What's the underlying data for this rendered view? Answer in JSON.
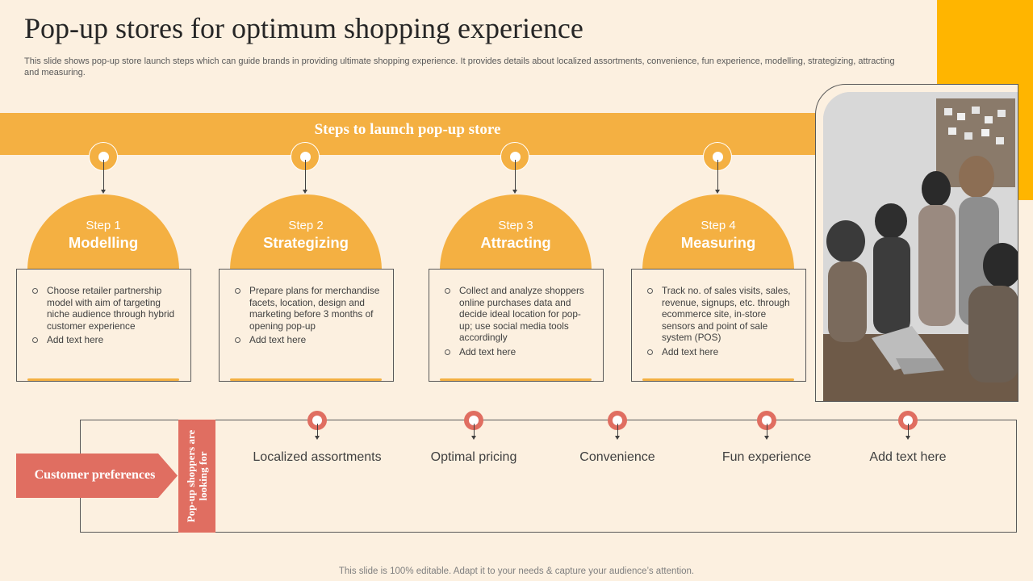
{
  "title": "Pop-up stores for optimum shopping experience",
  "subtitle": "This slide shows pop-up store launch steps which can guide brands in providing ultimate shopping experience. It provides details about localized assortments, convenience, fun experience, modelling, strategizing, attracting and measuring.",
  "banner_title": "Steps to launch pop-up store",
  "steps": [
    {
      "step": "Step 1",
      "name": "Modelling",
      "bullets": [
        "Choose retailer partnership model with aim of targeting niche audience through hybrid customer experience",
        "Add text here"
      ]
    },
    {
      "step": "Step 2",
      "name": "Strategizing",
      "bullets": [
        "Prepare plans for merchandise facets, location, design and marketing before 3 months of opening pop-up",
        "Add text here"
      ]
    },
    {
      "step": "Step 3",
      "name": "Attracting",
      "bullets": [
        "Collect and analyze shoppers online purchases data and decide ideal location for pop-up; use social media tools accordingly",
        "Add text here"
      ]
    },
    {
      "step": "Step 4",
      "name": "Measuring",
      "bullets": [
        "Track no. of sales visits, sales, revenue, signups, etc. through ecommerce site, in-store sensors and point of sale system (POS)",
        "Add text here"
      ]
    }
  ],
  "customer_preferences_label": "Customer preferences",
  "vertical_label": "Pop-up shoppers are looking for",
  "preferences": [
    "Localized assortments",
    "Optimal pricing",
    "Convenience",
    "Fun experience",
    "Add text here"
  ],
  "footer": "This slide is 100% editable. Adapt it to your needs & capture your audience’s attention.",
  "colors": {
    "background": "#FCF0E0",
    "step_accent": "#F4B042",
    "corner_accent": "#FFB500",
    "preference_accent": "#E06E61"
  }
}
